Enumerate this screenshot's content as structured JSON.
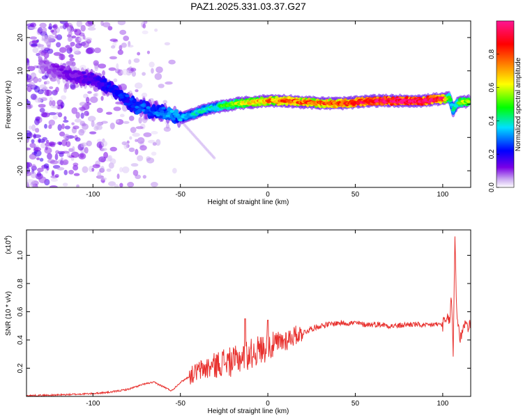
{
  "title": "PAZ1.2025.331.03.37.G27",
  "chart_data": [
    {
      "type": "heatmap",
      "xlabel": "Height of straight line (km)",
      "ylabel": "Frequency (Hz)",
      "xlim": [
        -138,
        116
      ],
      "ylim": [
        -25,
        25
      ],
      "xticks": [
        -100,
        -50,
        0,
        50,
        100
      ],
      "yticks": [
        -20,
        -10,
        0,
        10,
        20
      ],
      "colorbar": {
        "label": "Normalized spectral amplitude",
        "range": [
          0,
          1
        ],
        "ticks": [
          0.0,
          0.2,
          0.4,
          0.6,
          0.8
        ],
        "colormap": [
          "#ffffff",
          "#c9a8f0",
          "#7a00e6",
          "#0000ff",
          "#00e0ff",
          "#00ff00",
          "#ffff00",
          "#ff7f00",
          "#ff0000",
          "#ff1493"
        ]
      },
      "ridge": {
        "x": [
          -138,
          -120,
          -110,
          -100,
          -95,
          -90,
          -85,
          -80,
          -75,
          -70,
          -65,
          -60,
          -55,
          -50,
          -45,
          -40,
          -35,
          -30,
          -25,
          -20,
          -15,
          -10,
          -5,
          0,
          10,
          20,
          30,
          40,
          50,
          60,
          70,
          80,
          90,
          95,
          100,
          104,
          106,
          108,
          110,
          116
        ],
        "y": [
          13,
          10,
          8.5,
          7.5,
          6,
          5,
          3,
          1,
          -1,
          -1.5,
          -2,
          -2.5,
          -3,
          -4,
          -3.5,
          -2.5,
          -1.5,
          -1,
          -0.5,
          0,
          0.3,
          0.5,
          0.8,
          1,
          1,
          0.6,
          0.3,
          0.2,
          0.5,
          1,
          1,
          1,
          1,
          1.5,
          1.5,
          2,
          -2,
          0,
          0.5,
          1
        ],
        "amplitude": [
          0.05,
          0.1,
          0.12,
          0.15,
          0.18,
          0.2,
          0.22,
          0.22,
          0.25,
          0.25,
          0.25,
          0.28,
          0.3,
          0.3,
          0.3,
          0.35,
          0.35,
          0.35,
          0.45,
          0.5,
          0.55,
          0.6,
          0.6,
          0.65,
          0.7,
          0.7,
          0.72,
          0.75,
          0.8,
          0.85,
          0.9,
          0.92,
          0.9,
          0.85,
          0.8,
          0.4,
          0.35,
          0.4,
          0.5,
          0.55
        ]
      }
    },
    {
      "type": "line",
      "xlabel": "Height of straight line (km)",
      "ylabel": "SNR (10 * v/v)",
      "y_multiplier": "(x10",
      "y_multiplier_exp": "4",
      "y_multiplier_close": ")",
      "xlim": [
        -138,
        116
      ],
      "ylim": [
        0,
        1.18
      ],
      "xticks": [
        -100,
        -50,
        0,
        50,
        100
      ],
      "yticks": [
        0.2,
        0.4,
        0.6,
        0.8,
        1.0
      ],
      "color": "#e8312e",
      "x": [
        -138,
        -120,
        -100,
        -90,
        -80,
        -75,
        -70,
        -65,
        -60,
        -55,
        -50,
        -45,
        -40,
        -35,
        -30,
        -25,
        -20,
        -15,
        -10,
        -5,
        0,
        5,
        10,
        15,
        20,
        25,
        30,
        35,
        40,
        45,
        50,
        55,
        60,
        65,
        70,
        75,
        80,
        85,
        90,
        95,
        100,
        102,
        104,
        105,
        106,
        107,
        108,
        110,
        112,
        116
      ],
      "y": [
        0.005,
        0.01,
        0.02,
        0.03,
        0.05,
        0.07,
        0.09,
        0.1,
        0.07,
        0.04,
        0.1,
        0.14,
        0.18,
        0.2,
        0.22,
        0.25,
        0.24,
        0.28,
        0.3,
        0.33,
        0.35,
        0.37,
        0.4,
        0.43,
        0.45,
        0.48,
        0.5,
        0.51,
        0.52,
        0.52,
        0.52,
        0.51,
        0.51,
        0.51,
        0.5,
        0.5,
        0.51,
        0.51,
        0.5,
        0.51,
        0.51,
        0.53,
        0.55,
        0.7,
        0.3,
        1.15,
        0.6,
        0.4,
        0.52,
        0.49
      ]
    }
  ]
}
